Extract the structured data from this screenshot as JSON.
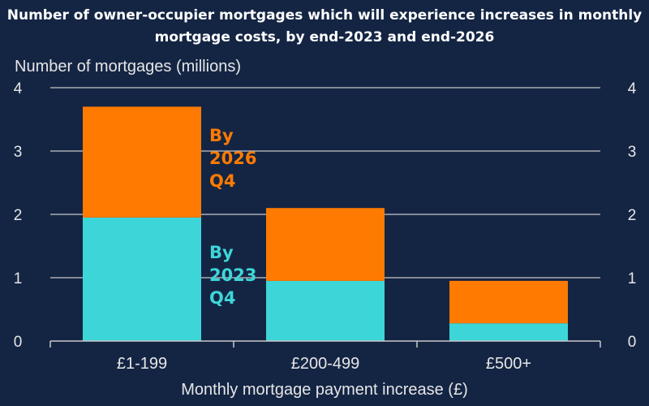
{
  "title": "Number of owner-occupier mortgages which will experience increases in monthly mortgage costs, by end-2023 and end-2026",
  "colors": {
    "background": "#142544",
    "series_2023": "#3dd6d8",
    "series_2026": "#ff7a00",
    "grid": "#c8c8c8",
    "text": "#e6e6e6"
  },
  "chart_data": {
    "type": "bar",
    "stacked": true,
    "categories": [
      "£1-199",
      "£200-499",
      "£500+"
    ],
    "series": [
      {
        "name": "By 2023 Q4",
        "values": [
          1.95,
          0.95,
          0.28
        ]
      },
      {
        "name": "By 2026 Q4",
        "values": [
          1.75,
          1.15,
          0.67
        ]
      }
    ],
    "totals": [
      3.7,
      2.1,
      0.95
    ],
    "ylabel": "Number of mortgages (millions)",
    "xlabel": "Monthly mortgage payment increase (£)",
    "ylim": [
      0,
      4
    ],
    "yticks": [
      "0",
      "1",
      "2",
      "3",
      "4"
    ],
    "grid": true,
    "legend": "inline-annotations",
    "annotations": [
      {
        "lines": [
          "By",
          "2026",
          "Q4"
        ],
        "series": "By 2026 Q4"
      },
      {
        "lines": [
          "By",
          "2023",
          "Q4"
        ],
        "series": "By 2023 Q4"
      }
    ]
  }
}
